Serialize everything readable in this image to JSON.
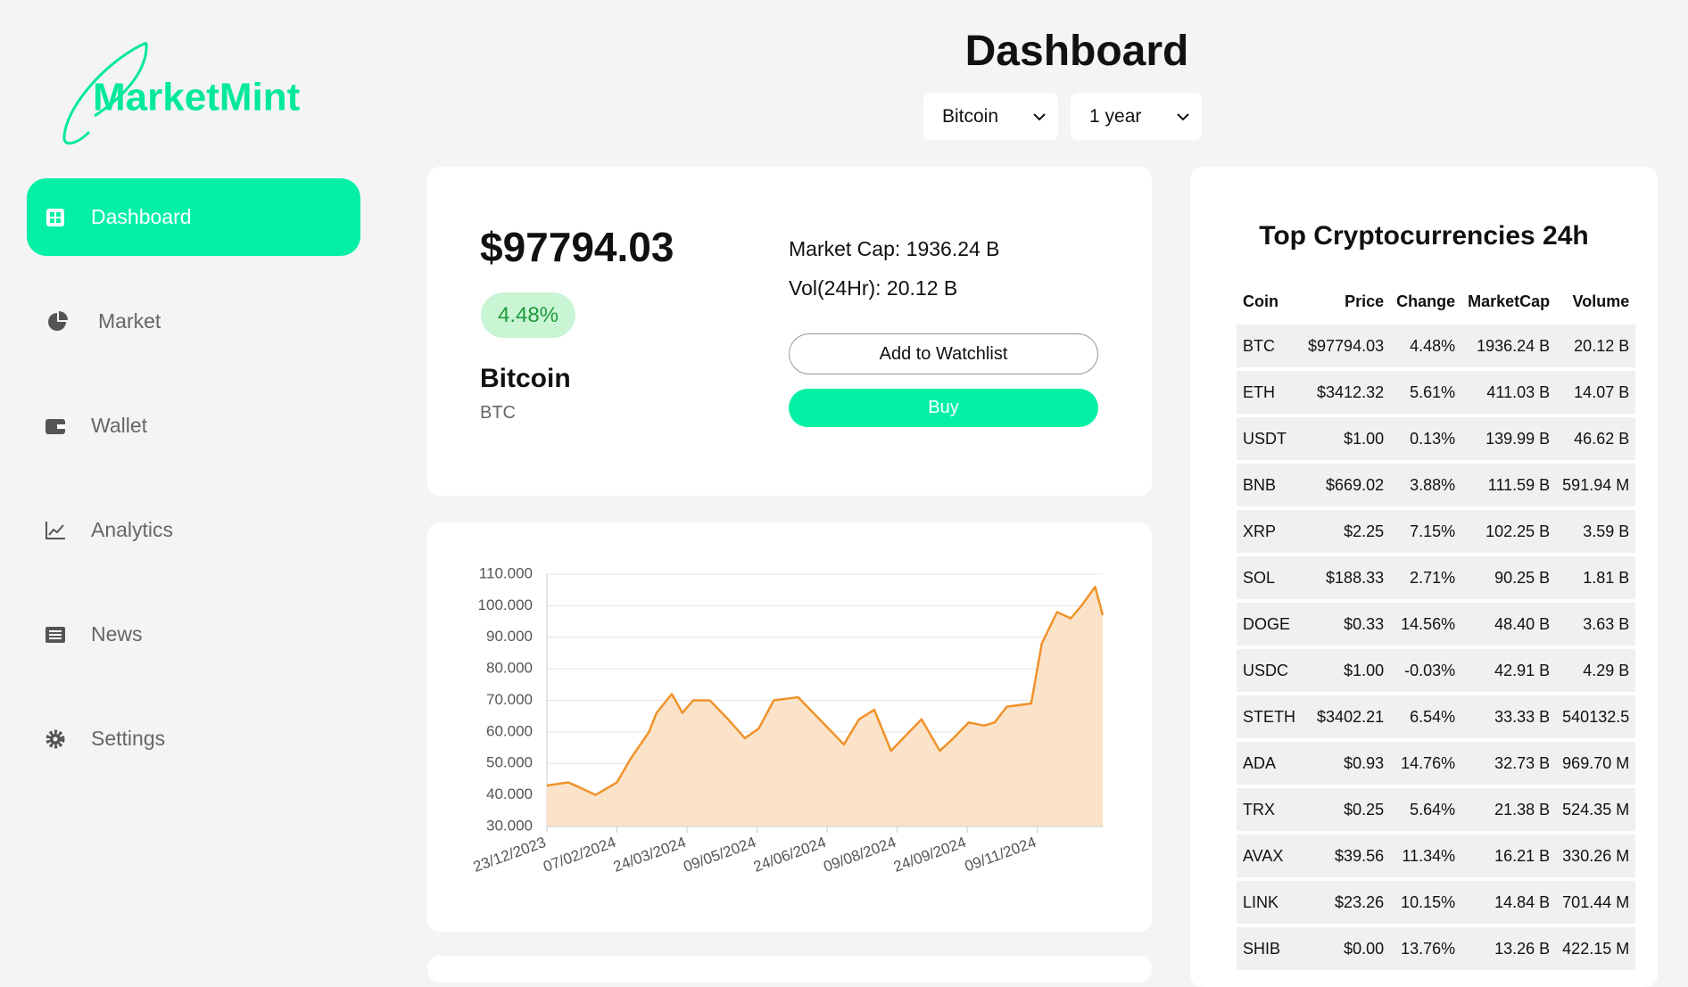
{
  "sidebar": {
    "logo": "MarketMint",
    "nav": [
      "Dashboard",
      "Market",
      "Wallet",
      "Analytics",
      "News",
      "Settings"
    ]
  },
  "header": {
    "title": "Dashboard",
    "coin_select": "Bitcoin",
    "range_select": "1 year"
  },
  "summary": {
    "price": "$97794.03",
    "change": "4.48%",
    "name": "Bitcoin",
    "symbol": "BTC",
    "market_cap": "Market Cap: 1936.24 B",
    "volume": "Vol(24Hr): 20.12 B",
    "watchlist_button": "Add to Watchlist",
    "buy_button": "Buy"
  },
  "chart_data": {
    "type": "line",
    "area": true,
    "color": "#f0922b",
    "area_color": "#fbe3c9",
    "grid": true,
    "x": [
      "23/12/2023",
      "06/01/2024",
      "13/01/2024",
      "24/01/2024",
      "07/02/2024",
      "16/02/2024",
      "28/02/2024",
      "04/03/2024",
      "14/03/2024",
      "21/03/2024",
      "28/03/2024",
      "08/04/2024",
      "20/04/2024",
      "01/05/2024",
      "10/05/2024",
      "20/05/2024",
      "05/06/2024",
      "15/06/2024",
      "25/06/2024",
      "05/07/2024",
      "15/07/2024",
      "25/07/2024",
      "05/08/2024",
      "15/08/2024",
      "25/08/2024",
      "06/09/2024",
      "15/09/2024",
      "25/09/2024",
      "05/10/2024",
      "12/10/2024",
      "20/10/2024",
      "05/11/2024",
      "12/11/2024",
      "22/11/2024",
      "01/12/2024",
      "08/12/2024",
      "17/12/2024",
      "22/12/2024"
    ],
    "values": [
      43000,
      44000,
      42500,
      40000,
      44000,
      51500,
      60000,
      66000,
      72000,
      66000,
      70000,
      70000,
      64000,
      58000,
      61000,
      70000,
      71000,
      66000,
      61000,
      56000,
      64000,
      67000,
      54000,
      59000,
      64000,
      54000,
      58000,
      63000,
      62000,
      63000,
      68000,
      69000,
      88000,
      98000,
      96000,
      100000,
      106000,
      97000
    ],
    "xlim": [
      "23/12/2023",
      "22/12/2024"
    ],
    "xticks": [
      "23/12/2023",
      "07/02/2024",
      "24/03/2024",
      "09/05/2024",
      "24/06/2024",
      "09/08/2024",
      "24/09/2024",
      "09/11/2024"
    ],
    "ylim": [
      30000,
      110000
    ],
    "yticks": [
      {
        "value": 30000,
        "label": "30.000"
      },
      {
        "value": 40000,
        "label": "40.000"
      },
      {
        "value": 50000,
        "label": "50.000"
      },
      {
        "value": 60000,
        "label": "60.000"
      },
      {
        "value": 70000,
        "label": "70.000"
      },
      {
        "value": 80000,
        "label": "80.000"
      },
      {
        "value": 90000,
        "label": "90.000"
      },
      {
        "value": 100000,
        "label": "100.000"
      },
      {
        "value": 110000,
        "label": "110.000"
      }
    ]
  },
  "top_table": {
    "title": "Top Cryptocurrencies 24h",
    "columns": [
      "Coin",
      "Price",
      "Change",
      "MarketCap",
      "Volume"
    ],
    "rows": [
      [
        "BTC",
        "$97794.03",
        "4.48%",
        "1936.24 B",
        "20.12 B"
      ],
      [
        "ETH",
        "$3412.32",
        "5.61%",
        "411.03 B",
        "14.07 B"
      ],
      [
        "USDT",
        "$1.00",
        "0.13%",
        "139.99 B",
        "46.62 B"
      ],
      [
        "BNB",
        "$669.02",
        "3.88%",
        "111.59 B",
        "591.94 M"
      ],
      [
        "XRP",
        "$2.25",
        "7.15%",
        "102.25 B",
        "3.59 B"
      ],
      [
        "SOL",
        "$188.33",
        "2.71%",
        "90.25 B",
        "1.81 B"
      ],
      [
        "DOGE",
        "$0.33",
        "14.56%",
        "48.40 B",
        "3.63 B"
      ],
      [
        "USDC",
        "$1.00",
        "-0.03%",
        "42.91 B",
        "4.29 B"
      ],
      [
        "STETH",
        "$3402.21",
        "6.54%",
        "33.33 B",
        "540132.5"
      ],
      [
        "ADA",
        "$0.93",
        "14.76%",
        "32.73 B",
        "969.70 M"
      ],
      [
        "TRX",
        "$0.25",
        "5.64%",
        "21.38 B",
        "524.35 M"
      ],
      [
        "AVAX",
        "$39.56",
        "11.34%",
        "16.21 B",
        "330.26 M"
      ],
      [
        "LINK",
        "$23.26",
        "10.15%",
        "14.84 B",
        "701.44 M"
      ],
      [
        "SHIB",
        "$0.00",
        "13.76%",
        "13.26 B",
        "422.15 M"
      ]
    ]
  }
}
